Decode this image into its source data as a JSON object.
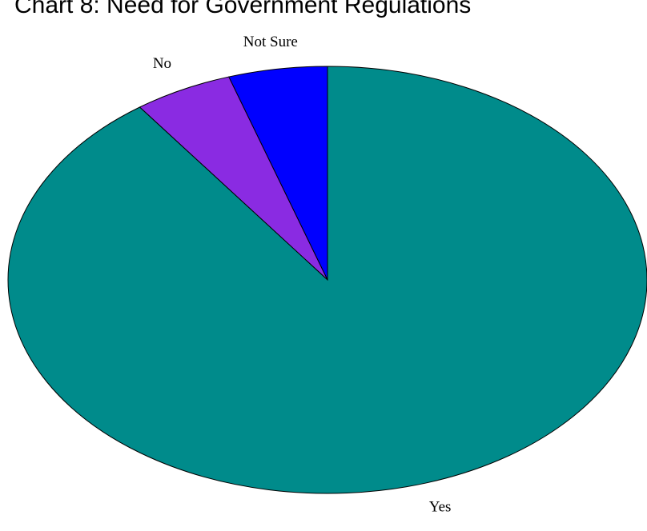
{
  "chart_data": {
    "type": "pie",
    "title": "Chart 8: Need for Government Regulations",
    "slices": [
      {
        "label": "Not Sure",
        "value": 5,
        "color": "#0000ff"
      },
      {
        "label": "No",
        "value": 5,
        "color": "#8a2be2"
      },
      {
        "label": "Yes",
        "value": 90,
        "color": "#008b8b"
      }
    ],
    "start_angle": "12 o'clock",
    "direction": "counterclockwise",
    "outline_color": "#000000",
    "legend": "none"
  }
}
